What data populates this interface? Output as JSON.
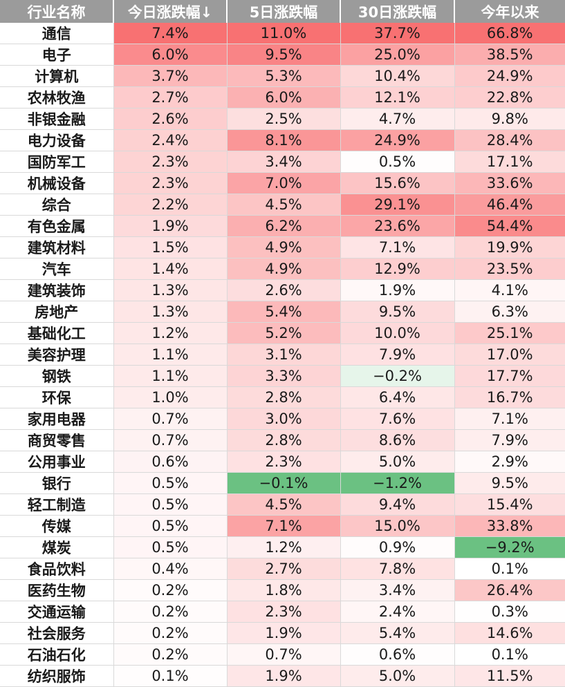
{
  "colors": {
    "header_bg": "#9b9b9b",
    "positive_max": "#f8696b",
    "negative_max": "#63be7b",
    "neutral": "#ffffff"
  },
  "headers": [
    "行业名称",
    "今日涨跌幅↓",
    "5日涨跌幅",
    "30日涨跌幅",
    "今年以来"
  ],
  "rows": [
    {
      "name": "通信",
      "today": "7.4%",
      "d5": "11.0%",
      "d30": "37.7%",
      "ytd": "66.8%"
    },
    {
      "name": "电子",
      "today": "6.0%",
      "d5": "9.5%",
      "d30": "25.0%",
      "ytd": "38.5%"
    },
    {
      "name": "计算机",
      "today": "3.7%",
      "d5": "5.3%",
      "d30": "10.4%",
      "ytd": "24.9%"
    },
    {
      "name": "农林牧渔",
      "today": "2.7%",
      "d5": "6.0%",
      "d30": "12.1%",
      "ytd": "22.8%"
    },
    {
      "name": "非银金融",
      "today": "2.6%",
      "d5": "2.5%",
      "d30": "4.7%",
      "ytd": "9.8%"
    },
    {
      "name": "电力设备",
      "today": "2.4%",
      "d5": "8.1%",
      "d30": "24.9%",
      "ytd": "28.4%"
    },
    {
      "name": "国防军工",
      "today": "2.3%",
      "d5": "3.4%",
      "d30": "0.5%",
      "ytd": "17.1%"
    },
    {
      "name": "机械设备",
      "today": "2.3%",
      "d5": "7.0%",
      "d30": "15.6%",
      "ytd": "33.6%"
    },
    {
      "name": "综合",
      "today": "2.2%",
      "d5": "4.5%",
      "d30": "29.1%",
      "ytd": "46.4%"
    },
    {
      "name": "有色金属",
      "today": "1.9%",
      "d5": "6.2%",
      "d30": "23.6%",
      "ytd": "54.4%"
    },
    {
      "name": "建筑材料",
      "today": "1.5%",
      "d5": "4.9%",
      "d30": "7.1%",
      "ytd": "19.9%"
    },
    {
      "name": "汽车",
      "today": "1.4%",
      "d5": "4.9%",
      "d30": "12.9%",
      "ytd": "23.5%"
    },
    {
      "name": "建筑装饰",
      "today": "1.3%",
      "d5": "2.6%",
      "d30": "1.9%",
      "ytd": "4.1%"
    },
    {
      "name": "房地产",
      "today": "1.3%",
      "d5": "5.4%",
      "d30": "9.5%",
      "ytd": "6.3%"
    },
    {
      "name": "基础化工",
      "today": "1.2%",
      "d5": "5.2%",
      "d30": "10.0%",
      "ytd": "25.1%"
    },
    {
      "name": "美容护理",
      "today": "1.1%",
      "d5": "3.1%",
      "d30": "7.9%",
      "ytd": "17.0%"
    },
    {
      "name": "钢铁",
      "today": "1.1%",
      "d5": "3.3%",
      "d30": "−0.2%",
      "ytd": "17.7%"
    },
    {
      "name": "环保",
      "today": "1.0%",
      "d5": "2.8%",
      "d30": "6.4%",
      "ytd": "16.7%"
    },
    {
      "name": "家用电器",
      "today": "0.7%",
      "d5": "3.0%",
      "d30": "7.6%",
      "ytd": "7.1%"
    },
    {
      "name": "商贸零售",
      "today": "0.7%",
      "d5": "2.8%",
      "d30": "8.6%",
      "ytd": "7.9%"
    },
    {
      "name": "公用事业",
      "today": "0.6%",
      "d5": "2.3%",
      "d30": "5.0%",
      "ytd": "2.9%"
    },
    {
      "name": "银行",
      "today": "0.5%",
      "d5": "−0.1%",
      "d30": "−1.2%",
      "ytd": "9.5%"
    },
    {
      "name": "轻工制造",
      "today": "0.5%",
      "d5": "4.5%",
      "d30": "9.4%",
      "ytd": "15.4%"
    },
    {
      "name": "传媒",
      "today": "0.5%",
      "d5": "7.1%",
      "d30": "15.0%",
      "ytd": "33.8%"
    },
    {
      "name": "煤炭",
      "today": "0.5%",
      "d5": "1.2%",
      "d30": "0.9%",
      "ytd": "−9.2%"
    },
    {
      "name": "食品饮料",
      "today": "0.4%",
      "d5": "2.7%",
      "d30": "7.8%",
      "ytd": "0.1%"
    },
    {
      "name": "医药生物",
      "today": "0.2%",
      "d5": "1.8%",
      "d30": "3.4%",
      "ytd": "26.4%"
    },
    {
      "name": "交通运输",
      "today": "0.2%",
      "d5": "2.3%",
      "d30": "2.4%",
      "ytd": "0.3%"
    },
    {
      "name": "社会服务",
      "today": "0.2%",
      "d5": "1.9%",
      "d30": "5.4%",
      "ytd": "14.6%"
    },
    {
      "name": "石油石化",
      "today": "0.2%",
      "d5": "0.7%",
      "d30": "0.6%",
      "ytd": "0.1%"
    },
    {
      "name": "纺织服饰",
      "today": "0.1%",
      "d5": "1.9%",
      "d30": "5.0%",
      "ytd": "11.5%"
    }
  ]
}
